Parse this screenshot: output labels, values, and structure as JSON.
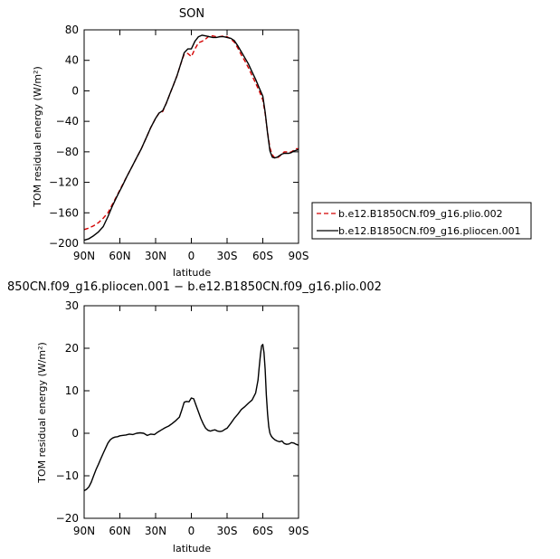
{
  "chart_data": [
    {
      "type": "line",
      "title": "SON",
      "xlabel": "latitude",
      "ylabel": "TOM residual energy  (W/m²)",
      "xlim": [
        90,
        -90
      ],
      "ylim": [
        -200,
        80
      ],
      "x_ticks": [
        90,
        60,
        30,
        0,
        -30,
        -60,
        -90
      ],
      "x_tick_labels": [
        "90N",
        "60N",
        "30N",
        "0",
        "30S",
        "60S",
        "90S"
      ],
      "y_ticks": [
        -200,
        -160,
        -120,
        -80,
        -40,
        0,
        40,
        80
      ],
      "y_tick_labels": [
        "−200",
        "−160",
        "−120",
        "−80",
        "−40",
        "0",
        "40",
        "80"
      ],
      "legend_position": "right",
      "series": [
        {
          "name": "b.e12.B1850CN.f09_g16.plio.002",
          "color": "#d40000",
          "dash": "dashed",
          "x": [
            90,
            86,
            82,
            78,
            74,
            70,
            66,
            62,
            58,
            54,
            50,
            46,
            42,
            38,
            34,
            30,
            27,
            24,
            21,
            18,
            15,
            12,
            9,
            6,
            3,
            0,
            -3,
            -6,
            -9,
            -12,
            -15,
            -18,
            -21,
            -24,
            -27,
            -30,
            -33,
            -36,
            -39,
            -42,
            -45,
            -48,
            -51,
            -54,
            -57,
            -60,
            -62,
            -64,
            -66,
            -68,
            -70,
            -72,
            -74,
            -76,
            -78,
            -80,
            -82,
            -84,
            -86,
            -88,
            -90
          ],
          "y": [
            -182,
            -180,
            -177,
            -173,
            -167,
            -160,
            -148,
            -136,
            -124,
            -112,
            -100,
            -88,
            -76,
            -62,
            -48,
            -36,
            -29,
            -27,
            -16,
            -4,
            8,
            20,
            35,
            48,
            49,
            45,
            55,
            63,
            65,
            68,
            72,
            72,
            71,
            71,
            72,
            71,
            68,
            64,
            56,
            47,
            39,
            30,
            20,
            10,
            0,
            -12,
            -30,
            -55,
            -75,
            -84,
            -88,
            -88,
            -86,
            -83,
            -80,
            -80,
            -81,
            -80,
            -78,
            -76,
            -76
          ]
        },
        {
          "name": "b.e12.B1850CN.f09_g16.pliocen.001",
          "color": "#000000",
          "dash": "solid",
          "x": [
            90,
            86,
            82,
            78,
            74,
            70,
            66,
            62,
            58,
            54,
            50,
            46,
            42,
            38,
            34,
            30,
            27,
            24,
            21,
            18,
            15,
            12,
            9,
            6,
            3,
            0,
            -3,
            -6,
            -9,
            -12,
            -15,
            -18,
            -21,
            -24,
            -27,
            -30,
            -33,
            -36,
            -39,
            -42,
            -45,
            -48,
            -51,
            -54,
            -57,
            -60,
            -62,
            -64,
            -66,
            -68,
            -70,
            -72,
            -74,
            -76,
            -78,
            -80,
            -82,
            -84,
            -86,
            -88,
            -90
          ],
          "y": [
            -196,
            -194,
            -190,
            -185,
            -178,
            -165,
            -150,
            -137,
            -125,
            -112,
            -100,
            -88,
            -76,
            -62,
            -48,
            -36,
            -29,
            -26,
            -16,
            -4,
            8,
            20,
            35,
            50,
            55,
            55,
            65,
            71,
            73,
            72,
            71,
            70,
            70,
            71,
            71,
            70,
            69,
            66,
            59,
            51,
            43,
            35,
            25,
            15,
            4,
            -7,
            -28,
            -56,
            -79,
            -87,
            -88,
            -87,
            -85,
            -83,
            -82,
            -82,
            -82,
            -81,
            -79,
            -78,
            -77
          ]
        }
      ]
    },
    {
      "type": "line",
      "title": "850CN.f09_g16.pliocen.001 − b.e12.B1850CN.f09_g16.plio.002",
      "xlabel": "latitude",
      "ylabel": "TOM residual energy  (W/m²)",
      "xlim": [
        90,
        -90
      ],
      "ylim": [
        -20,
        30
      ],
      "x_ticks": [
        90,
        60,
        30,
        0,
        -30,
        -60,
        -90
      ],
      "x_tick_labels": [
        "90N",
        "60N",
        "30N",
        "0",
        "30S",
        "60S",
        "90S"
      ],
      "y_ticks": [
        -20,
        -10,
        0,
        10,
        20,
        30
      ],
      "y_tick_labels": [
        "−20",
        "−10",
        "0",
        "10",
        "20",
        "30"
      ],
      "series": [
        {
          "color": "#000000",
          "dash": "solid",
          "x": [
            90,
            88,
            86,
            84,
            82,
            80,
            78,
            76,
            74,
            72,
            70,
            68,
            66,
            64,
            62,
            60,
            58,
            55,
            52,
            49,
            46,
            43,
            40,
            37,
            34,
            31,
            28,
            25,
            22,
            19,
            16,
            13,
            10,
            8,
            6,
            4,
            2,
            0,
            -2,
            -4,
            -6,
            -8,
            -10,
            -12,
            -14,
            -16,
            -18,
            -20,
            -22,
            -24,
            -26,
            -28,
            -30,
            -33,
            -36,
            -39,
            -42,
            -45,
            -48,
            -51,
            -54,
            -56,
            -57,
            -58,
            -59,
            -60,
            -61,
            -62,
            -63,
            -64,
            -65,
            -66,
            -67,
            -68,
            -70,
            -72,
            -74,
            -76,
            -78,
            -80,
            -82,
            -84,
            -86,
            -88,
            -90
          ],
          "y": [
            -13.5,
            -13.2,
            -12.6,
            -11.5,
            -10,
            -8.5,
            -7.3,
            -6,
            -4.7,
            -3.5,
            -2.3,
            -1.5,
            -1.1,
            -0.9,
            -0.8,
            -0.6,
            -0.5,
            -0.4,
            -0.2,
            -0.3,
            0,
            0.1,
            0,
            -0.5,
            -0.2,
            -0.3,
            0.3,
            0.8,
            1.3,
            1.7,
            2.3,
            3,
            3.8,
            5.5,
            7.3,
            7.5,
            7.4,
            8.3,
            8.1,
            6.5,
            5,
            3.5,
            2.2,
            1.2,
            0.7,
            0.5,
            0.7,
            0.8,
            0.5,
            0.4,
            0.5,
            0.9,
            1.2,
            2.3,
            3.5,
            4.5,
            5.6,
            6.3,
            7.1,
            7.8,
            9.5,
            12.5,
            15.5,
            18.5,
            20.6,
            20.9,
            19,
            15,
            9,
            4.5,
            1.5,
            0,
            -0.6,
            -1,
            -1.5,
            -1.8,
            -2,
            -1.8,
            -2.4,
            -2.6,
            -2.5,
            -2.2,
            -2.3,
            -2.6,
            -2.8
          ]
        }
      ]
    }
  ]
}
